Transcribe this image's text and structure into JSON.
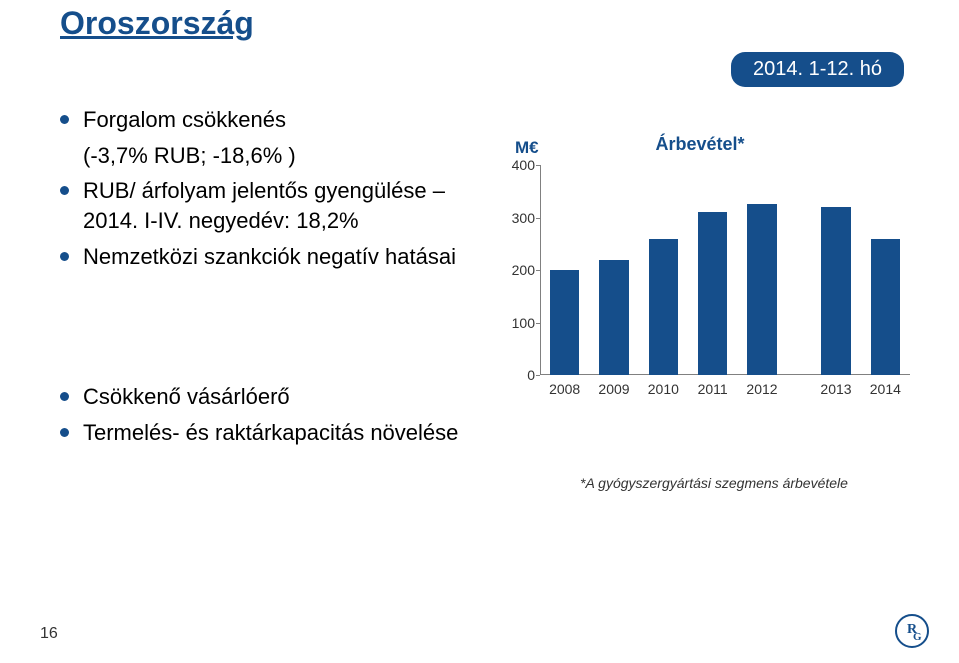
{
  "title": "Oroszország",
  "date_badge": "2014. 1-12. hó",
  "bullets_upper": [
    {
      "lead": "Forgalom csökkenés",
      "sub": "(-3,7% RUB; -18,6% )"
    },
    {
      "lead": "RUB/ árfolyam jelentős gyengülése – 2014. I-IV. negyedév: 18,2%"
    },
    {
      "lead": "Nemzetközi szankciók negatív hatásai"
    }
  ],
  "bullets_lower": [
    {
      "lead": "Csökkenő vásárlóerő"
    },
    {
      "lead": "Termelés- és raktárkapacitás növelése"
    }
  ],
  "chart": {
    "type": "bar",
    "title": "Árbevétel*",
    "y_unit": "M€",
    "categories": [
      "2008",
      "2009",
      "2010",
      "2011",
      "2012",
      "2013",
      "2014"
    ],
    "values": [
      200,
      220,
      260,
      310,
      325,
      320,
      260
    ],
    "bar_color": "#154e8b",
    "ylim": [
      0,
      400
    ],
    "ytick_step": 100,
    "yticks": [
      0,
      100,
      200,
      300,
      400
    ],
    "label_fontsize": 14,
    "title_fontsize": 18,
    "background_color": "#ffffff",
    "axis_color": "#808080",
    "bar_width": 0.6,
    "gap_after_index": 4,
    "gap_extra": 0.5
  },
  "footnote": "*A gyógyszergyártási szegmens árbevétele",
  "page_number": "16",
  "colors": {
    "brand": "#154e8b",
    "text": "#000000"
  }
}
